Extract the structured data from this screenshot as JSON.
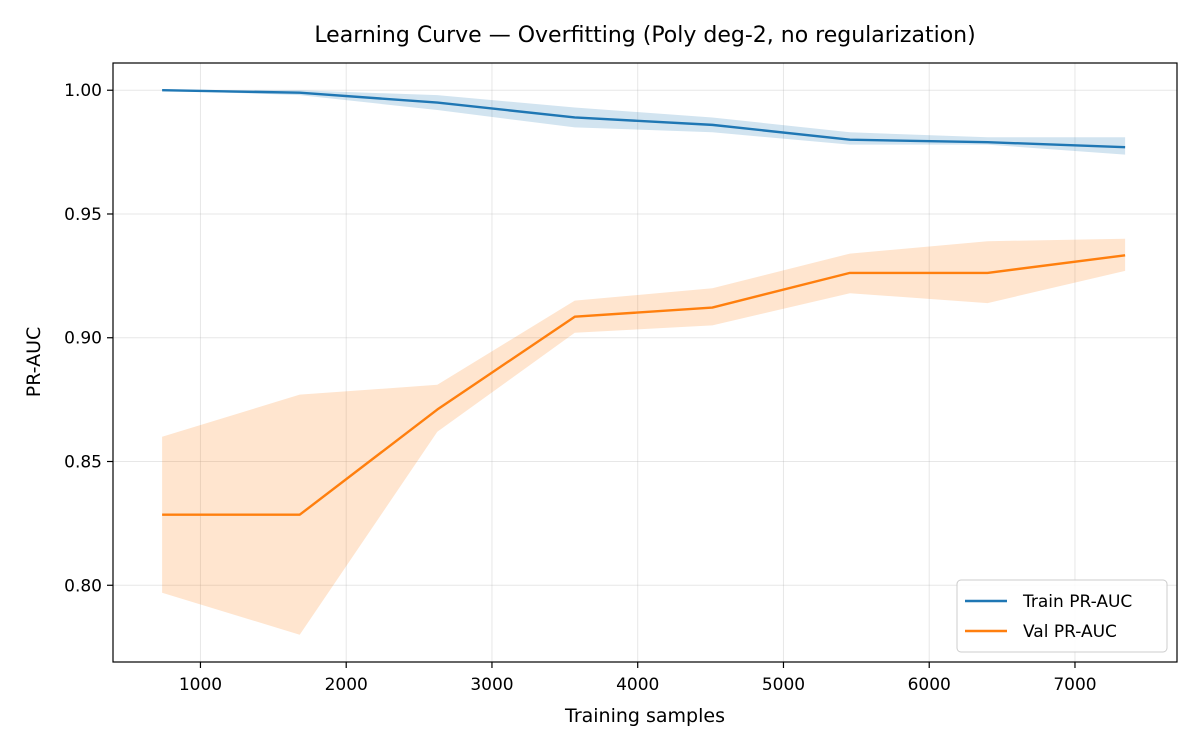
{
  "chart_data": {
    "type": "line",
    "title": "Learning Curve — Overfitting (Poly deg-2, no regularization)",
    "xlabel": "Training samples",
    "ylabel": "PR-AUC",
    "xlim": [
      400,
      7700
    ],
    "ylim": [
      0.769,
      1.011
    ],
    "xticks": [
      1000,
      2000,
      3000,
      4000,
      5000,
      6000,
      7000
    ],
    "xtick_labels": [
      "1000",
      "2000",
      "3000",
      "4000",
      "5000",
      "6000",
      "7000"
    ],
    "yticks": [
      0.8,
      0.85,
      0.9,
      0.95,
      1.0
    ],
    "ytick_labels": [
      "0.80",
      "0.85",
      "0.90",
      "0.95",
      "1.00"
    ],
    "grid": true,
    "legend_position": "lower-right",
    "x": [
      737,
      1681,
      2625,
      3568,
      4512,
      5456,
      6400,
      7344
    ],
    "series": [
      {
        "name": "Train PR-AUC",
        "color": "#1f77b4",
        "band_color": "#1f77b4",
        "values": [
          1.0,
          0.999,
          0.995,
          0.989,
          0.986,
          0.98,
          0.979,
          0.977
        ],
        "lower": [
          1.0,
          0.998,
          0.992,
          0.985,
          0.983,
          0.978,
          0.978,
          0.974
        ],
        "upper": [
          1.0,
          1.0,
          0.998,
          0.993,
          0.989,
          0.983,
          0.981,
          0.981
        ]
      },
      {
        "name": "Val PR-AUC",
        "color": "#ff7f0e",
        "band_color": "#ff7f0e",
        "values": [
          0.8285,
          0.8285,
          0.871,
          0.9085,
          0.9122,
          0.9262,
          0.9262,
          0.9333
        ],
        "lower": [
          0.797,
          0.78,
          0.862,
          0.902,
          0.905,
          0.918,
          0.914,
          0.927
        ],
        "upper": [
          0.86,
          0.877,
          0.881,
          0.915,
          0.92,
          0.934,
          0.939,
          0.94
        ]
      }
    ]
  }
}
